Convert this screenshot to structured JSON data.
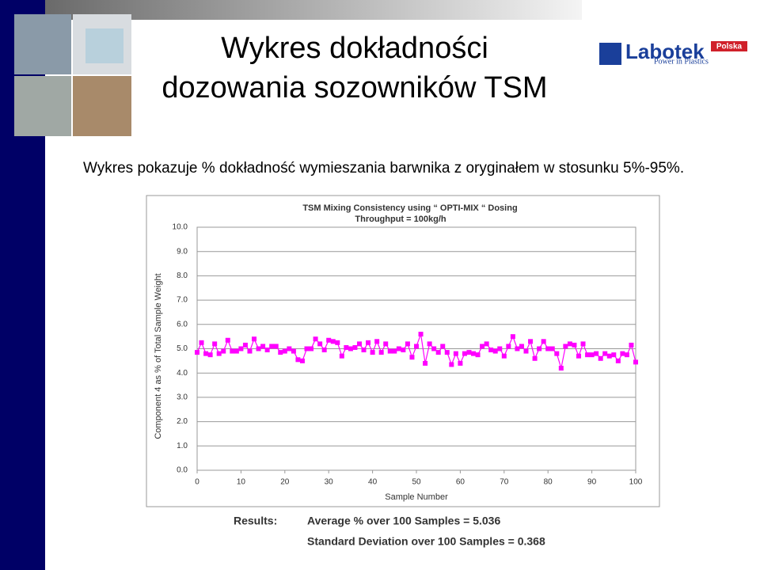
{
  "slide": {
    "title_lines": [
      "Wykres dokładności",
      "dozowania sozowników TSM"
    ],
    "subtitle": "Wykres pokazuje % dokładność wymieszania barwnika z oryginałem w stosunku 5%-95%.",
    "logo": {
      "name": "Labotek",
      "badge": "Polska",
      "tagline": "Power in Plastics"
    },
    "results": {
      "label": "Results:",
      "lines": [
        "Average % over 100 Samples = 5.036",
        "Standard Deviation over 100 Samples = 0.368"
      ]
    }
  },
  "chart_data": {
    "type": "line",
    "title_lines": [
      "TSM Mixing Consistency using “ OPTI-MIX “ Dosing",
      "Throughput = 100kg/h"
    ],
    "x_label": "Sample Number",
    "y_label": "Component 4 as % of Total Sample Weight",
    "x": [
      0,
      1,
      2,
      3,
      4,
      5,
      6,
      7,
      8,
      9,
      10,
      11,
      12,
      13,
      14,
      15,
      16,
      17,
      18,
      19,
      20,
      21,
      22,
      23,
      24,
      25,
      26,
      27,
      28,
      29,
      30,
      31,
      32,
      33,
      34,
      35,
      36,
      37,
      38,
      39,
      40,
      41,
      42,
      43,
      44,
      45,
      46,
      47,
      48,
      49,
      50,
      51,
      52,
      53,
      54,
      55,
      56,
      57,
      58,
      59,
      60,
      61,
      62,
      63,
      64,
      65,
      66,
      67,
      68,
      69,
      70,
      71,
      72,
      73,
      74,
      75,
      76,
      77,
      78,
      79,
      80,
      81,
      82,
      83,
      84,
      85,
      86,
      87,
      88,
      89,
      90,
      91,
      92,
      93,
      94,
      95,
      96,
      97,
      98,
      99,
      100
    ],
    "series": [
      {
        "color": "#ff00ff",
        "values": [
          4.85,
          5.25,
          4.8,
          4.75,
          5.2,
          4.8,
          4.9,
          5.35,
          4.9,
          4.9,
          5.0,
          5.15,
          4.9,
          5.4,
          5.0,
          5.1,
          4.95,
          5.1,
          5.1,
          4.85,
          4.9,
          5.0,
          4.9,
          4.55,
          4.5,
          5.0,
          5.0,
          5.4,
          5.2,
          4.95,
          5.35,
          5.3,
          5.25,
          4.7,
          5.05,
          5.0,
          5.05,
          5.2,
          4.95,
          5.25,
          4.85,
          5.3,
          4.85,
          5.2,
          4.9,
          4.9,
          5.0,
          4.95,
          5.2,
          4.65,
          5.1,
          5.6,
          4.4,
          5.2,
          5.0,
          4.85,
          5.1,
          4.85,
          4.35,
          4.8,
          4.4,
          4.8,
          4.85,
          4.8,
          4.75,
          5.1,
          5.2,
          4.95,
          4.9,
          5.0,
          4.7,
          5.1,
          5.5,
          5.0,
          5.1,
          4.9,
          5.3,
          4.6,
          5.0,
          5.3,
          5.0,
          5.0,
          4.8,
          4.2,
          5.1,
          5.2,
          5.15,
          4.7,
          5.2,
          4.75,
          4.75,
          4.8,
          4.6,
          4.8,
          4.7,
          4.75,
          4.5,
          4.8,
          4.75,
          5.15,
          4.45
        ]
      }
    ],
    "xlim": [
      0,
      100
    ],
    "xticks": [
      0,
      10,
      20,
      30,
      40,
      50,
      60,
      70,
      80,
      90,
      100
    ],
    "ylim": [
      0,
      10
    ],
    "yticks": [
      {
        "value": 0,
        "label": "0.0"
      },
      {
        "value": 1,
        "label": "1.0"
      },
      {
        "value": 2,
        "label": "2.0"
      },
      {
        "value": 3,
        "label": "3.0"
      },
      {
        "value": 4,
        "label": "4.0"
      },
      {
        "value": 5,
        "label": "5.0"
      },
      {
        "value": 6,
        "label": "6.0"
      },
      {
        "value": 7,
        "label": "7.0"
      },
      {
        "value": 8,
        "label": "8.0"
      },
      {
        "value": 9,
        "label": "9.0"
      },
      {
        "value": 10,
        "label": "10.0"
      }
    ],
    "grid": true
  }
}
